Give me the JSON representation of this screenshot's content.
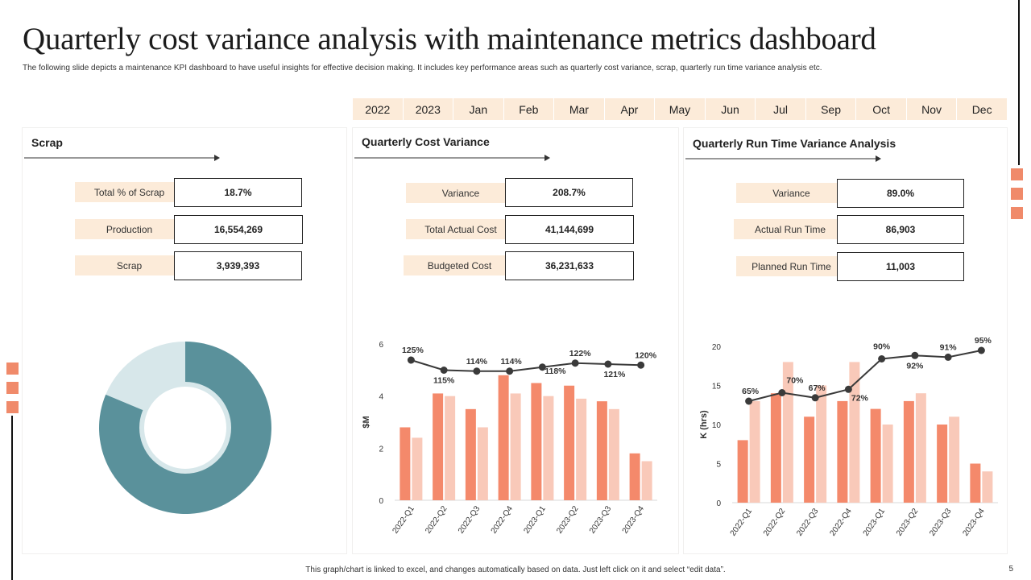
{
  "header": {
    "title": "Quarterly cost variance analysis with maintenance metrics dashboard",
    "subtitle": "The following slide depicts a maintenance KPI dashboard to have useful insights for effective decision making. It includes key performance areas such as quarterly cost variance, scrap, quarterly run time variance analysis etc."
  },
  "months": [
    "2022",
    "2023",
    "Jan",
    "Feb",
    "Mar",
    "Apr",
    "May",
    "Jun",
    "Jul",
    "Sep",
    "Oct",
    "Nov",
    "Dec"
  ],
  "scrap": {
    "title": "Scrap",
    "kpis": [
      {
        "label": "Total % of Scrap",
        "value": "18.7%"
      },
      {
        "label": "Production",
        "value": "16,554,269"
      },
      {
        "label": "Scrap",
        "value": "3,939,393"
      }
    ]
  },
  "cost": {
    "title": "Quarterly Cost Variance",
    "kpis": [
      {
        "label": "Variance",
        "value": "208.7%"
      },
      {
        "label": "Total Actual Cost",
        "value": "41,144,699"
      },
      {
        "label": "Budgeted Cost",
        "value": "36,231,633"
      }
    ]
  },
  "runtime": {
    "title": "Quarterly Run Time Variance Analysis",
    "kpis": [
      {
        "label": "Variance",
        "value": "89.0%"
      },
      {
        "label": "Actual Run Time",
        "value": "86,903"
      },
      {
        "label": "Planned Run Time",
        "value": "11,003"
      }
    ]
  },
  "colors": {
    "accent": "#f08a6a",
    "bar_primary": "#f4896b",
    "bar_secondary": "#f9c9b9",
    "donut_main": "#5a919b",
    "donut_light": "#d7e7ea",
    "label_bg": "#fcebd9",
    "line": "#3a3a3a"
  },
  "chart_data": [
    {
      "id": "scrap-donut",
      "type": "pie",
      "title": "Scrap",
      "categories": [
        "Production",
        "Scrap"
      ],
      "values": [
        81.3,
        18.7
      ]
    },
    {
      "id": "cost-variance",
      "type": "bar",
      "title": "Quarterly Cost Variance",
      "ylabel": "$M",
      "ylim": [
        0,
        6
      ],
      "yticks": [
        "0",
        "2",
        "4",
        "6"
      ],
      "categories": [
        "2022-Q1",
        "2022-Q2",
        "2022-Q3",
        "2022-Q4",
        "2023-Q1",
        "2023-Q2",
        "2023-Q3",
        "2023-Q4"
      ],
      "series": [
        {
          "name": "Actual Cost",
          "type": "bar",
          "values": [
            2.8,
            4.1,
            3.5,
            4.8,
            4.5,
            4.4,
            3.8,
            1.8
          ]
        },
        {
          "name": "Budgeted Cost",
          "type": "bar",
          "values": [
            2.4,
            4.0,
            2.8,
            4.1,
            4.0,
            3.9,
            3.5,
            1.5
          ]
        },
        {
          "name": "Variance",
          "type": "line",
          "values": [
            125,
            115,
            114,
            114,
            118,
            122,
            121,
            120
          ],
          "labels": [
            "125%",
            "115%",
            "114%",
            "114%",
            "118%",
            "122%",
            "121%",
            "120%"
          ]
        }
      ]
    },
    {
      "id": "runtime-variance",
      "type": "bar",
      "title": "Quarterly Run Time Variance Analysis",
      "ylabel": "K (hrs)",
      "ylim": [
        0,
        20
      ],
      "yticks": [
        "0",
        "5",
        "10",
        "15",
        "20"
      ],
      "categories": [
        "2022-Q1",
        "2022-Q2",
        "2022-Q3",
        "2022-Q4",
        "2023-Q1",
        "2023-Q2",
        "2023-Q3",
        "2023-Q4"
      ],
      "series": [
        {
          "name": "Actual Run Time",
          "type": "bar",
          "values": [
            8,
            14,
            11,
            13,
            12,
            13,
            10,
            5
          ]
        },
        {
          "name": "Planned Run Time",
          "type": "bar",
          "values": [
            13,
            18,
            15,
            18,
            10,
            14,
            11,
            4
          ]
        },
        {
          "name": "Variance",
          "type": "line",
          "values": [
            65,
            70,
            67,
            72,
            90,
            92,
            91,
            95
          ],
          "labels": [
            "65%",
            "70%",
            "67%",
            "72%",
            "90%",
            "92%",
            "91%",
            "95%"
          ]
        }
      ]
    }
  ],
  "footer": {
    "note": "This graph/chart is linked to excel, and changes automatically based on data. Just left click on it and select “edit data”.",
    "page": "5"
  }
}
